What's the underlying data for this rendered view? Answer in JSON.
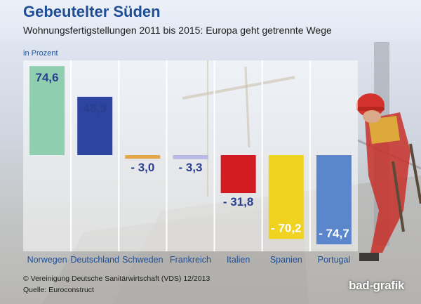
{
  "header": {
    "title": "Gebeutelter Süden",
    "subtitle": "Wohnungsfertigstellungen 2011 bis 2015: Europa geht getrennte Wege"
  },
  "chart_data": {
    "type": "bar",
    "title": "Gebeutelter Süden",
    "subtitle": "Wohnungsfertigstellungen 2011 bis 2015: Europa geht getrennte Wege",
    "unit_label": "in Prozent",
    "categories": [
      "Norwegen",
      "Deutschland",
      "Schweden",
      "Frankreich",
      "Italien",
      "Spanien",
      "Portugal"
    ],
    "values": [
      74.6,
      48.9,
      -3.0,
      -3.3,
      -31.8,
      -70.2,
      -74.7
    ],
    "value_labels": [
      "74,6",
      "48,9",
      "- 3,0",
      "- 3,3",
      "- 31,8",
      "- 70,2",
      "- 74,7"
    ],
    "colors": [
      "#8fcfb0",
      "#2d44a0",
      "#e4a84a",
      "#b9b9e6",
      "#d31b22",
      "#f0d320",
      "#5b86cc"
    ],
    "ylim": [
      -80,
      80
    ],
    "grid": false,
    "xlabel": "",
    "ylabel": ""
  },
  "footer": {
    "copyright": "© Vereinigung Deutsche Sanitärwirtschaft (VDS)  12/2013",
    "source": "Quelle: Euroconstruct",
    "logo": "bad-grafik"
  },
  "colors": {
    "title": "#1f4e96",
    "label_dark": "#2a3e8f",
    "label_light": "#ffffff",
    "category": "#1f4e96"
  }
}
